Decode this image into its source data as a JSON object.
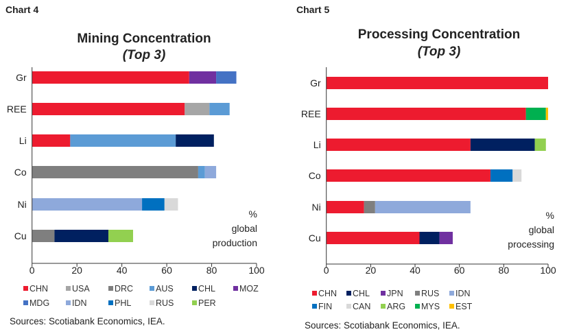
{
  "chart_data": [
    {
      "type": "bar",
      "orientation": "horizontal",
      "stacked": true,
      "label": "Chart 4",
      "title": "Mining Concentration",
      "subtitle": "(Top 3)",
      "xlabel": "% global production",
      "xlim": [
        0,
        100
      ],
      "xticks": [
        "0",
        "20",
        "40",
        "60",
        "80",
        "100"
      ],
      "categories": [
        "Gr",
        "REE",
        "Li",
        "Co",
        "Ni",
        "Cu"
      ],
      "bars": [
        {
          "category": "Gr",
          "segments": [
            {
              "country": "CHN",
              "value": 70
            },
            {
              "country": "MOZ",
              "value": 12
            },
            {
              "country": "MDG",
              "value": 9
            }
          ]
        },
        {
          "category": "REE",
          "segments": [
            {
              "country": "CHN",
              "value": 68
            },
            {
              "country": "USA",
              "value": 11
            },
            {
              "country": "AUS",
              "value": 9
            }
          ]
        },
        {
          "category": "Li",
          "segments": [
            {
              "country": "CHN",
              "value": 17
            },
            {
              "country": "AUS",
              "value": 47
            },
            {
              "country": "CHL",
              "value": 17
            }
          ]
        },
        {
          "category": "Co",
          "segments": [
            {
              "country": "DRC",
              "value": 74
            },
            {
              "country": "AUS",
              "value": 3
            },
            {
              "country": "IDN",
              "value": 5
            }
          ]
        },
        {
          "category": "Ni",
          "segments": [
            {
              "country": "IDN",
              "value": 49
            },
            {
              "country": "PHL",
              "value": 10
            },
            {
              "country": "RUS",
              "value": 6
            }
          ]
        },
        {
          "category": "Cu",
          "segments": [
            {
              "country": "DRC",
              "value": 10
            },
            {
              "country": "CHL",
              "value": 24
            },
            {
              "country": "PER",
              "value": 11
            }
          ]
        }
      ],
      "legend": [
        {
          "name": "CHN",
          "color": "#ED1B2F"
        },
        {
          "name": "USA",
          "color": "#A6A6A6"
        },
        {
          "name": "DRC",
          "color": "#7F7F7F"
        },
        {
          "name": "AUS",
          "color": "#5B9BD5"
        },
        {
          "name": "CHL",
          "color": "#002060"
        },
        {
          "name": "MOZ",
          "color": "#7030A0"
        },
        {
          "name": "MDG",
          "color": "#4472C4"
        },
        {
          "name": "IDN",
          "color": "#8EA9DB"
        },
        {
          "name": "PHL",
          "color": "#0070C0"
        },
        {
          "name": "RUS",
          "color": "#D9D9D9"
        },
        {
          "name": "PER",
          "color": "#92D050"
        }
      ],
      "legend_position": "bottom",
      "source": "Sources: Scotiabank Economics, IEA.",
      "grid": false
    },
    {
      "type": "bar",
      "orientation": "horizontal",
      "stacked": true,
      "label": "Chart 5",
      "title": "Processing Concentration",
      "subtitle": "(Top 3)",
      "xlabel": "% global processing",
      "xlim": [
        0,
        100
      ],
      "xticks": [
        "0",
        "20",
        "40",
        "60",
        "80",
        "100"
      ],
      "categories": [
        "Gr",
        "REE",
        "Li",
        "Co",
        "Ni",
        "Cu"
      ],
      "bars": [
        {
          "category": "Gr",
          "segments": [
            {
              "country": "CHN",
              "value": 100
            }
          ]
        },
        {
          "category": "REE",
          "segments": [
            {
              "country": "CHN",
              "value": 90
            },
            {
              "country": "MYS",
              "value": 9
            },
            {
              "country": "EST",
              "value": 1
            }
          ]
        },
        {
          "category": "Li",
          "segments": [
            {
              "country": "CHN",
              "value": 65
            },
            {
              "country": "CHL",
              "value": 29
            },
            {
              "country": "ARG",
              "value": 5
            }
          ]
        },
        {
          "category": "Co",
          "segments": [
            {
              "country": "CHN",
              "value": 74
            },
            {
              "country": "FIN",
              "value": 10
            },
            {
              "country": "CAN",
              "value": 4
            }
          ]
        },
        {
          "category": "Ni",
          "segments": [
            {
              "country": "CHN",
              "value": 17
            },
            {
              "country": "RUS",
              "value": 5
            },
            {
              "country": "IDN",
              "value": 43
            }
          ]
        },
        {
          "category": "Cu",
          "segments": [
            {
              "country": "CHN",
              "value": 42
            },
            {
              "country": "CHL",
              "value": 9
            },
            {
              "country": "JPN",
              "value": 6
            }
          ]
        }
      ],
      "legend": [
        {
          "name": "CHN",
          "color": "#ED1B2F"
        },
        {
          "name": "CHL",
          "color": "#002060"
        },
        {
          "name": "JPN",
          "color": "#7030A0"
        },
        {
          "name": "RUS",
          "color": "#7F7F7F"
        },
        {
          "name": "IDN",
          "color": "#8EA9DB"
        },
        {
          "name": "FIN",
          "color": "#0070C0"
        },
        {
          "name": "CAN",
          "color": "#D9D9D9"
        },
        {
          "name": "ARG",
          "color": "#92D050"
        },
        {
          "name": "MYS",
          "color": "#00B050"
        },
        {
          "name": "EST",
          "color": "#FFC000"
        }
      ],
      "legend_position": "bottom",
      "source": "Sources: Scotiabank Economics, IEA.",
      "grid": false
    }
  ]
}
